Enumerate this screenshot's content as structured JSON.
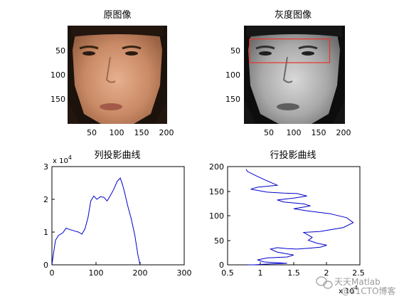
{
  "colors": {
    "curve": "#0000cc",
    "roi": "#e8342d",
    "axes": "#000000",
    "background": "#ffffff"
  },
  "icons": {
    "watermark": "wechat-logo-icon"
  },
  "watermark": {
    "text": "天天Matlab",
    "secondary": "@51CTO博客"
  },
  "chart_data": [
    {
      "type": "image",
      "title": "原图像",
      "xticks": [
        50,
        100,
        150,
        200
      ],
      "yticks": [
        50,
        100,
        150
      ],
      "xlim": [
        1,
        200
      ],
      "ylim": [
        1,
        200
      ],
      "y_reversed": true,
      "content": "color face photo"
    },
    {
      "type": "image",
      "title": "灰度图像",
      "xticks": [
        50,
        100,
        150,
        200
      ],
      "yticks": [
        50,
        100,
        150
      ],
      "xlim": [
        1,
        200
      ],
      "ylim": [
        1,
        200
      ],
      "y_reversed": true,
      "content": "grayscale face photo",
      "annotations": [
        {
          "type": "rectangle",
          "x": [
            12,
            170
          ],
          "y": [
            28,
            76
          ],
          "label": "eye region"
        }
      ]
    },
    {
      "type": "line",
      "title": "列投影曲线",
      "xlim": [
        0,
        300
      ],
      "ylim": [
        0,
        30000
      ],
      "xticks": [
        0,
        100,
        200,
        300
      ],
      "yticks": [
        0,
        1,
        2,
        3
      ],
      "y_scale_label": "x 10^4",
      "series": [
        {
          "x": [
            0,
            3,
            8,
            15,
            25,
            32,
            40,
            50,
            60,
            68,
            75,
            82,
            88,
            95,
            102,
            110,
            118,
            125,
            132,
            140,
            148,
            155,
            160,
            165,
            172,
            180,
            188,
            195,
            200
          ],
          "y": [
            0,
            3000,
            7500,
            9000,
            9800,
            11200,
            10800,
            10400,
            10000,
            9400,
            11000,
            14500,
            19500,
            21000,
            20000,
            20800,
            20600,
            19500,
            21000,
            23000,
            25500,
            26500,
            24500,
            22000,
            18000,
            14000,
            9000,
            3000,
            0
          ]
        }
      ]
    },
    {
      "type": "line",
      "title": "行投影曲线",
      "xlim": [
        5000,
        25000
      ],
      "ylim": [
        0,
        200
      ],
      "xticks": [
        0.5,
        1,
        1.5,
        2,
        2.5
      ],
      "yticks": [
        0,
        50,
        100,
        150,
        200
      ],
      "x_scale_label": "x 10^4",
      "series": [
        {
          "x": [
            7800,
            8000,
            9500,
            10800,
            12500,
            9500,
            8500,
            11000,
            13500,
            15500,
            17000,
            15000,
            12500,
            13500,
            16500,
            17500,
            15000,
            17000,
            20500,
            23000,
            24000,
            22500,
            19000,
            16500,
            17000,
            17800,
            17200,
            18500,
            20000,
            19000,
            17500,
            15500,
            14000,
            12500,
            11500,
            12500,
            15000,
            14000,
            11000,
            9500,
            10500,
            14000,
            11500,
            9000,
            8000
          ],
          "y": [
            195,
            190,
            180,
            172,
            162,
            158,
            154,
            148,
            146,
            145,
            140,
            136,
            132,
            128,
            124,
            120,
            114,
            110,
            104,
            96,
            86,
            76,
            68,
            66,
            62,
            56,
            50,
            44,
            40,
            36,
            34,
            32,
            33,
            35,
            32,
            26,
            20,
            16,
            14,
            10,
            6,
            3,
            2,
            0,
            0
          ]
        }
      ]
    }
  ]
}
